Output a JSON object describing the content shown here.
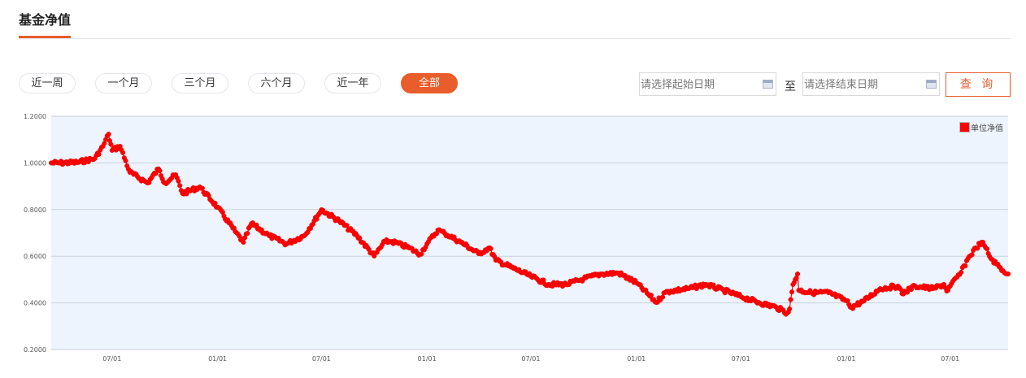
{
  "header": {
    "title": "基金净值"
  },
  "ranges": [
    {
      "label": "近一周"
    },
    {
      "label": "一个月"
    },
    {
      "label": "三个月"
    },
    {
      "label": "六个月"
    },
    {
      "label": "近一年"
    },
    {
      "label": "全部",
      "active": true
    }
  ],
  "date_filter": {
    "start_placeholder": "请选择起始日期",
    "separator": "至",
    "end_placeholder": "请选择结束日期",
    "query_label": "查 询"
  },
  "colors": {
    "accent": "#e95c2b",
    "series": "#ff0000",
    "plot_bg": "#edf4fd"
  },
  "chart_data": {
    "type": "line",
    "ylim": [
      0.2,
      1.2
    ],
    "yticks": [
      "0.2000",
      "0.4000",
      "0.6000",
      "0.8000",
      "1.0000",
      "1.2000"
    ],
    "xticks": [
      {
        "date": "2021-07-01",
        "label": "07/01"
      },
      {
        "date": "2022-01-01",
        "label": "01/01"
      },
      {
        "date": "2022-07-01",
        "label": "07/01"
      },
      {
        "date": "2023-01-01",
        "label": "01/01"
      },
      {
        "date": "2023-07-01",
        "label": "07/01"
      },
      {
        "date": "2024-01-01",
        "label": "01/01"
      },
      {
        "date": "2024-07-01",
        "label": "07/01"
      },
      {
        "date": "2025-01-01",
        "label": "01/01"
      },
      {
        "date": "2025-07-01",
        "label": "07/01"
      }
    ],
    "xlim": [
      "2021-03-17",
      "2025-10-10"
    ],
    "grid": true,
    "legend_position": "top-right",
    "series": [
      {
        "name": "单位净值",
        "points": [
          [
            "2021-03-17",
            1.0
          ],
          [
            "2021-04-01",
            1.0
          ],
          [
            "2021-05-01",
            1.002
          ],
          [
            "2021-06-01",
            1.019
          ],
          [
            "2021-06-15",
            1.071
          ],
          [
            "2021-06-25",
            1.123
          ],
          [
            "2021-07-01",
            1.054
          ],
          [
            "2021-07-15",
            1.071
          ],
          [
            "2021-08-01",
            0.96
          ],
          [
            "2021-09-01",
            0.914
          ],
          [
            "2021-09-20",
            0.974
          ],
          [
            "2021-10-01",
            0.914
          ],
          [
            "2021-10-20",
            0.949
          ],
          [
            "2021-11-01",
            0.869
          ],
          [
            "2021-12-01",
            0.897
          ],
          [
            "2022-01-01",
            0.81
          ],
          [
            "2022-02-01",
            0.705
          ],
          [
            "2022-02-15",
            0.66
          ],
          [
            "2022-03-01",
            0.74
          ],
          [
            "2022-04-01",
            0.688
          ],
          [
            "2022-05-01",
            0.653
          ],
          [
            "2022-06-01",
            0.688
          ],
          [
            "2022-06-25",
            0.775
          ],
          [
            "2022-07-01",
            0.799
          ],
          [
            "2022-08-01",
            0.751
          ],
          [
            "2022-09-01",
            0.688
          ],
          [
            "2022-10-01",
            0.601
          ],
          [
            "2022-10-20",
            0.663
          ],
          [
            "2022-11-01",
            0.663
          ],
          [
            "2022-12-01",
            0.636
          ],
          [
            "2022-12-20",
            0.608
          ],
          [
            "2023-01-01",
            0.653
          ],
          [
            "2023-01-20",
            0.712
          ],
          [
            "2023-02-01",
            0.698
          ],
          [
            "2023-03-01",
            0.66
          ],
          [
            "2023-04-01",
            0.611
          ],
          [
            "2023-04-20",
            0.636
          ],
          [
            "2023-05-01",
            0.583
          ],
          [
            "2023-06-01",
            0.548
          ],
          [
            "2023-07-01",
            0.514
          ],
          [
            "2023-08-01",
            0.479
          ],
          [
            "2023-09-01",
            0.479
          ],
          [
            "2023-10-01",
            0.503
          ],
          [
            "2023-11-01",
            0.524
          ],
          [
            "2023-12-01",
            0.528
          ],
          [
            "2024-01-01",
            0.486
          ],
          [
            "2024-02-05",
            0.402
          ],
          [
            "2024-02-20",
            0.444
          ],
          [
            "2024-03-01",
            0.451
          ],
          [
            "2024-04-01",
            0.461
          ],
          [
            "2024-05-01",
            0.479
          ],
          [
            "2024-06-01",
            0.454
          ],
          [
            "2024-07-01",
            0.427
          ],
          [
            "2024-08-01",
            0.402
          ],
          [
            "2024-09-01",
            0.381
          ],
          [
            "2024-09-20",
            0.357
          ],
          [
            "2024-09-24",
            0.374
          ],
          [
            "2024-09-30",
            0.479
          ],
          [
            "2024-10-08",
            0.524
          ],
          [
            "2024-10-10",
            0.454
          ],
          [
            "2024-11-01",
            0.444
          ],
          [
            "2024-12-01",
            0.444
          ],
          [
            "2025-01-01",
            0.409
          ],
          [
            "2025-01-10",
            0.381
          ],
          [
            "2025-02-01",
            0.409
          ],
          [
            "2025-03-01",
            0.461
          ],
          [
            "2025-04-01",
            0.472
          ],
          [
            "2025-04-08",
            0.44
          ],
          [
            "2025-05-01",
            0.472
          ],
          [
            "2025-06-01",
            0.461
          ],
          [
            "2025-06-20",
            0.479
          ],
          [
            "2025-06-25",
            0.451
          ],
          [
            "2025-07-01",
            0.472
          ],
          [
            "2025-07-20",
            0.531
          ],
          [
            "2025-08-01",
            0.59
          ],
          [
            "2025-08-15",
            0.636
          ],
          [
            "2025-08-25",
            0.66
          ],
          [
            "2025-09-01",
            0.636
          ],
          [
            "2025-09-10",
            0.59
          ],
          [
            "2025-09-20",
            0.566
          ],
          [
            "2025-10-01",
            0.538
          ],
          [
            "2025-10-10",
            0.524
          ]
        ]
      }
    ]
  }
}
